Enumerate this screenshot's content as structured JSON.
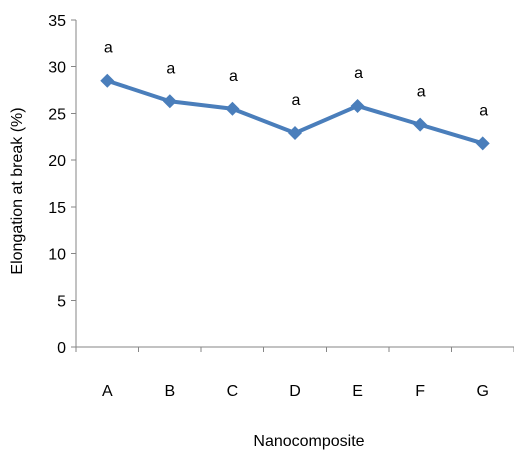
{
  "chart_data": {
    "type": "line",
    "categories": [
      "A",
      "B",
      "C",
      "D",
      "E",
      "F",
      "G"
    ],
    "series": [
      {
        "values": [
          28.5,
          26.3,
          25.5,
          22.9,
          25.8,
          23.8,
          21.8
        ],
        "color": "#4a7ebb",
        "marker": "diamond"
      }
    ],
    "data_labels": [
      "a",
      "a",
      "a",
      "a",
      "a",
      "a",
      "a"
    ],
    "title": "",
    "xlabel": "Nanocomposite",
    "ylabel": "Elongation at break (%)",
    "ylim": [
      0,
      35
    ],
    "yticks": [
      0,
      5,
      10,
      15,
      20,
      25,
      30,
      35
    ],
    "grid": false,
    "legend": "none"
  }
}
